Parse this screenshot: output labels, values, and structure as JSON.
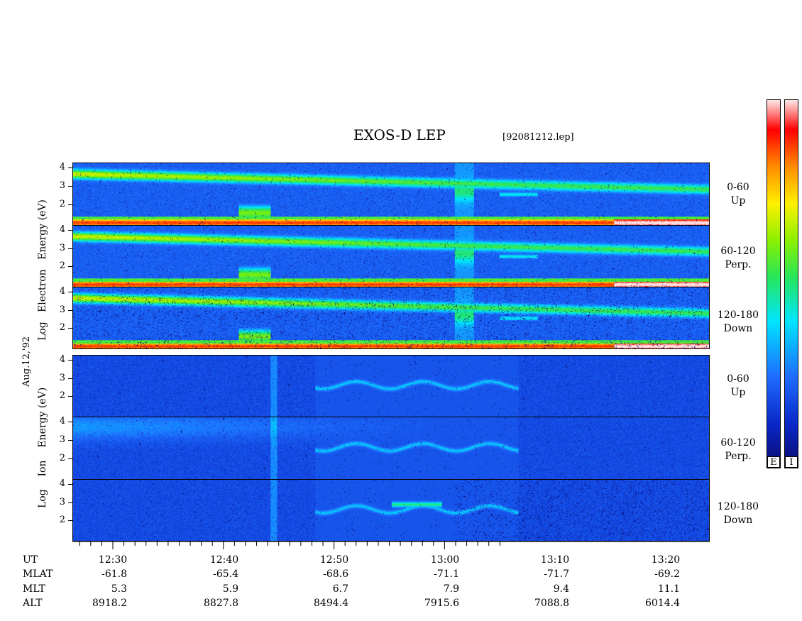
{
  "title": "EXOS-D LEP",
  "file": "[92081212.lep]",
  "date_label": "Aug.12,'92",
  "electron_label": [
    "Log",
    "Electron",
    "Energy",
    "(eV)"
  ],
  "ion_label": [
    "Log",
    "Ion",
    "Energy",
    "(eV)"
  ],
  "panels": [
    {
      "group": "Electron",
      "angle": "0-60",
      "dir": "Up"
    },
    {
      "group": "Electron",
      "angle": "60-120",
      "dir": "Perp."
    },
    {
      "group": "Electron",
      "angle": "120-180",
      "dir": "Down"
    },
    {
      "group": "Ion",
      "angle": "0-60",
      "dir": "Up"
    },
    {
      "group": "Ion",
      "angle": "60-120",
      "dir": "Perp."
    },
    {
      "group": "Ion",
      "angle": "120-180",
      "dir": "Down"
    }
  ],
  "y_ticks": [
    "4",
    "3",
    "2"
  ],
  "colorbar": {
    "electron_label": "E",
    "ion_label": "I"
  },
  "axis_rows": {
    "UT": {
      "label": "UT",
      "values": [
        "12:30",
        "12:40",
        "12:50",
        "13:00",
        "13:10",
        "13:20"
      ]
    },
    "MLAT": {
      "label": "MLAT",
      "values": [
        "-61.8",
        "-65.4",
        "-68.6",
        "-71.1",
        "-71.7",
        "-69.2"
      ]
    },
    "MLT": {
      "label": "MLT",
      "values": [
        "5.3",
        "5.9",
        "6.7",
        "7.9",
        "9.4",
        "11.1"
      ]
    },
    "ALT": {
      "label": "ALT",
      "values": [
        "8918.2",
        "8827.8",
        "8494.4",
        "7915.6",
        "7088.8",
        "6014.4"
      ]
    }
  },
  "chart_data": {
    "type": "heatmap",
    "title": "EXOS-D LEP",
    "subtitle": "[92081212.lep]",
    "x": [
      "12:30",
      "12:40",
      "12:50",
      "13:00",
      "13:10",
      "13:20"
    ],
    "xlabel": "UT",
    "ylabel": "Log Energy (eV)",
    "ylim": [
      1,
      4.1
    ],
    "y_ticks": [
      2,
      3,
      4
    ],
    "series": [
      {
        "name": "Electron 0-60 Up"
      },
      {
        "name": "Electron 60-120 Perp."
      },
      {
        "name": "Electron 120-180 Down"
      },
      {
        "name": "Ion 0-60 Up"
      },
      {
        "name": "Ion 60-120 Perp."
      },
      {
        "name": "Ion 120-180 Down"
      }
    ],
    "colorbar": [
      "E",
      "I"
    ]
  }
}
